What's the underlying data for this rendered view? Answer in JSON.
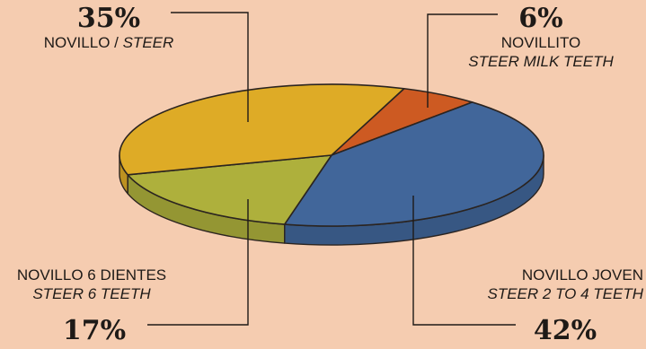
{
  "chart_data": {
    "type": "pie",
    "style": "3d",
    "slices": [
      {
        "label": "NOVILLITO",
        "label_en": "STEER MILK TEETH",
        "value": 6,
        "value_text": "6%",
        "color": "#cd5a22"
      },
      {
        "label": "NOVILLO JOVEN",
        "label_en": "STEER 2 TO 4 TEETH",
        "value": 42,
        "value_text": "42%",
        "color": "#41669a"
      },
      {
        "label": "NOVILLO 6 DIENTES",
        "label_en": "STEER 6 TEETH",
        "value": 17,
        "value_text": "17%",
        "color": "#aeb03c"
      },
      {
        "label": "NOVILLO",
        "label_en": "STEER",
        "value": 35,
        "value_text": "35%",
        "color": "#deab26"
      }
    ],
    "legend": "none"
  },
  "colors": {
    "background": "#f5ccb0",
    "outline": "#2b2420",
    "leader_line": "#1e1a17"
  }
}
